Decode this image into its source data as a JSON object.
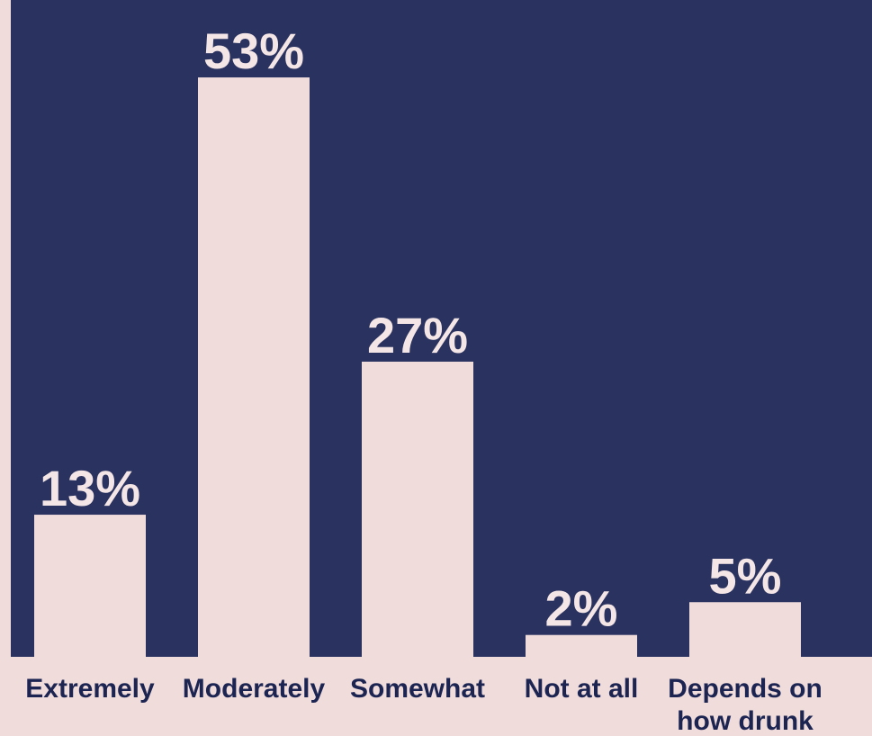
{
  "chart_data": {
    "type": "bar",
    "categories": [
      "Extremely",
      "Moderately",
      "Somewhat",
      "Not at all",
      "Depends on how drunk"
    ],
    "category_lines": [
      [
        "Extremely"
      ],
      [
        "Moderately"
      ],
      [
        "Somewhat"
      ],
      [
        "Not at all"
      ],
      [
        "Depends on",
        "how drunk"
      ]
    ],
    "values": [
      13,
      53,
      27,
      2,
      5
    ],
    "value_labels": [
      "13%",
      "53%",
      "27%",
      "2%",
      "5%"
    ],
    "ylim": [
      0,
      60
    ],
    "grid": false,
    "colors": {
      "background": "#2a3260",
      "bar": "#f1dcdc",
      "page": "#f1dcdc",
      "label_text": "#1c2552"
    }
  }
}
